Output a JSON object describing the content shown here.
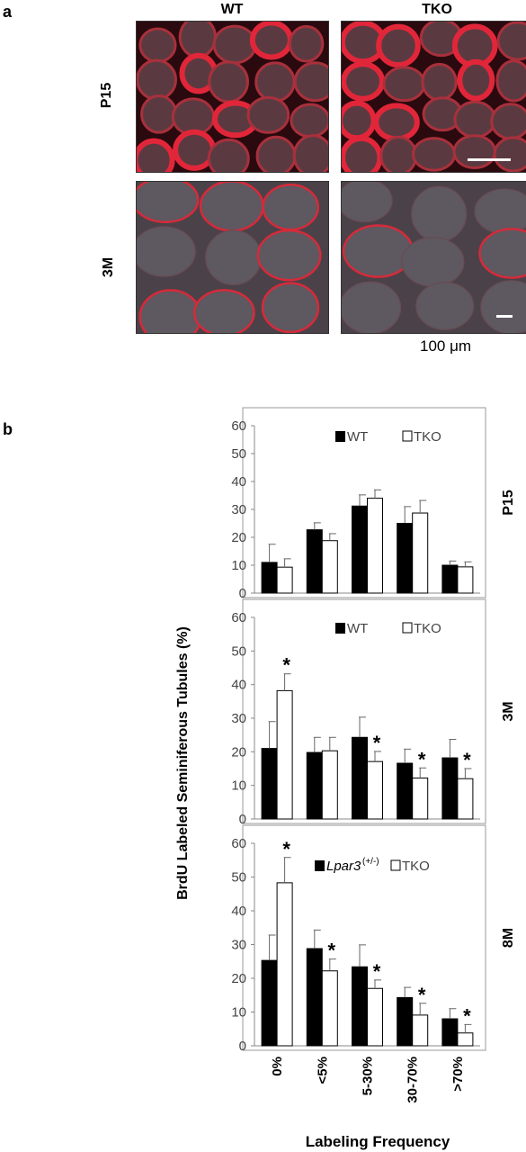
{
  "panel_a": {
    "letter": "a",
    "columns": [
      "WT",
      "TKO"
    ],
    "rows": [
      "P15",
      "3M"
    ],
    "scale_bar_text": "100 μm"
  },
  "panel_b": {
    "letter": "b"
  },
  "chart_data": [
    {
      "type": "bar",
      "row_label": "P15",
      "categories": [
        "0%",
        "<5%",
        "5-30%",
        "30-70%",
        ">70%"
      ],
      "series": [
        {
          "name": "WT",
          "values": [
            11,
            22.7,
            31.2,
            25,
            10
          ],
          "errors": [
            6.5,
            2.5,
            4,
            6,
            1.5
          ],
          "color": "#000000"
        },
        {
          "name": "TKO",
          "values": [
            9.3,
            18.8,
            34,
            28.7,
            9.4
          ],
          "errors": [
            3,
            2.5,
            3,
            4.5,
            1.8
          ],
          "color": "#ffffff"
        }
      ],
      "significant": [],
      "yticks": [
        0,
        10,
        20,
        30,
        40,
        50,
        60
      ],
      "ylim": [
        0,
        60
      ]
    },
    {
      "type": "bar",
      "row_label": "3M",
      "categories": [
        "0%",
        "<5%",
        "5-30%",
        "30-70%",
        ">70%"
      ],
      "series": [
        {
          "name": "WT",
          "values": [
            21,
            19.8,
            24.3,
            16.6,
            18.2
          ],
          "errors": [
            8,
            4.5,
            6,
            4.2,
            5.5
          ],
          "color": "#000000"
        },
        {
          "name": "TKO",
          "values": [
            38.2,
            20.3,
            17.1,
            12.2,
            12
          ],
          "errors": [
            5,
            4,
            3,
            3,
            3
          ],
          "color": "#ffffff"
        }
      ],
      "significant": [
        [
          1,
          0
        ],
        [
          1,
          2
        ],
        [
          1,
          3
        ],
        [
          1,
          4
        ]
      ],
      "significance_marker": "*",
      "yticks": [
        0,
        10,
        20,
        30,
        40,
        50,
        60
      ],
      "ylim": [
        0,
        60
      ]
    },
    {
      "type": "bar",
      "row_label": "8M",
      "categories": [
        "0%",
        "<5%",
        "5-30%",
        "30-70%",
        ">70%"
      ],
      "series": [
        {
          "name": "Lpar3",
          "name_superscript": "(+/-)",
          "values": [
            25.3,
            28.8,
            23.4,
            14.3,
            8
          ],
          "errors": [
            7.5,
            5.5,
            6.5,
            3,
            3
          ],
          "color": "#000000"
        },
        {
          "name": "TKO",
          "values": [
            48.3,
            22.2,
            17,
            9.1,
            3.8
          ],
          "errors": [
            7.5,
            3.5,
            2.5,
            3.5,
            2.5
          ],
          "color": "#ffffff"
        }
      ],
      "significant": [
        [
          1,
          0
        ],
        [
          1,
          1
        ],
        [
          1,
          2
        ],
        [
          1,
          3
        ],
        [
          1,
          4
        ]
      ],
      "significance_marker": "*",
      "yticks": [
        0,
        10,
        20,
        30,
        40,
        50,
        60
      ],
      "ylim": [
        0,
        60
      ]
    }
  ],
  "ylabel": "BrdU Labeled Seminiferous Tubules (%)",
  "xlabel": "Labeling Frequency"
}
